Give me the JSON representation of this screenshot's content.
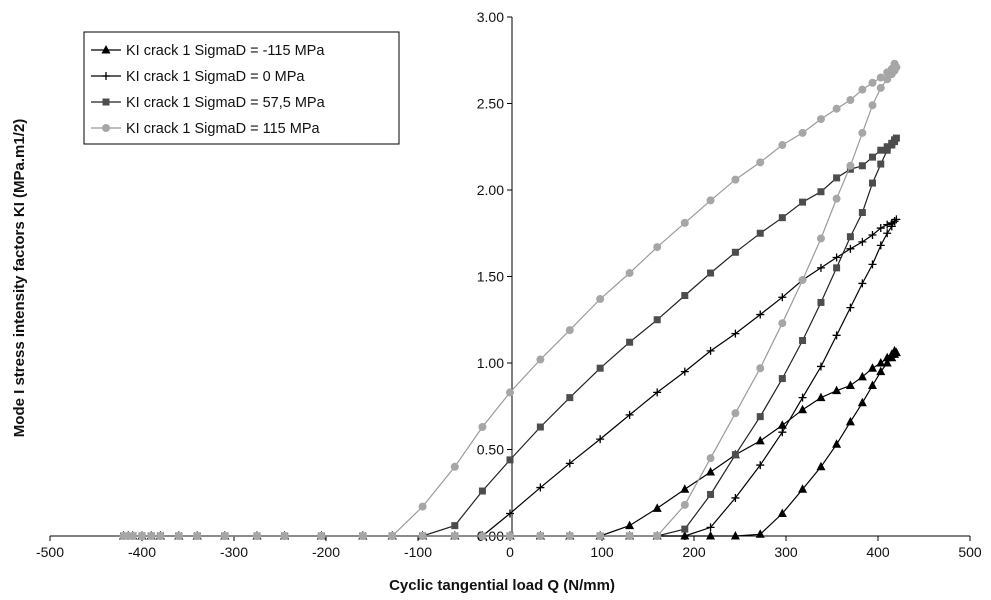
{
  "chart_data": {
    "type": "line",
    "xlabel": "Cyclic tangential load Q (N/mm)",
    "ylabel": "Mode I stress intensity factors KI (MPa.m1/2)",
    "xlim": [
      -500,
      500
    ],
    "ylim": [
      0,
      3
    ],
    "x_ticks": [
      "-500",
      "-400",
      "-300",
      "-200",
      "-100",
      "0",
      "100",
      "200",
      "300",
      "400",
      "500"
    ],
    "y_ticks": [
      "0.00",
      "0.50",
      "1.00",
      "1.50",
      "2.00",
      "2.50",
      "3.00"
    ],
    "grid": false,
    "legend_position": "top-left",
    "series": [
      {
        "name": "KI crack 1 SigmaD = -115 MPa",
        "marker": "triangle",
        "color": "#000000",
        "line_color": "#000000",
        "points": [
          [
            -420,
            0
          ],
          [
            -415,
            0
          ],
          [
            -410,
            0
          ],
          [
            -400,
            0
          ],
          [
            -390,
            0
          ],
          [
            -380,
            0
          ],
          [
            -360,
            0
          ],
          [
            -340,
            0
          ],
          [
            -310,
            0
          ],
          [
            -275,
            0
          ],
          [
            -245,
            0
          ],
          [
            -205,
            0
          ],
          [
            -160,
            0
          ],
          [
            -128,
            0
          ],
          [
            -95,
            0
          ],
          [
            -60,
            0
          ],
          [
            -30,
            0
          ],
          [
            0,
            0
          ],
          [
            33,
            0
          ],
          [
            65,
            0
          ],
          [
            98,
            0
          ],
          [
            130,
            0
          ],
          [
            160,
            0
          ],
          [
            190,
            0
          ],
          [
            218,
            0
          ],
          [
            245,
            0
          ],
          [
            272,
            0.01
          ],
          [
            296,
            0.13
          ],
          [
            318,
            0.27
          ],
          [
            338,
            0.4
          ],
          [
            355,
            0.53
          ],
          [
            370,
            0.66
          ],
          [
            383,
            0.77
          ],
          [
            394,
            0.87
          ],
          [
            403,
            0.95
          ],
          [
            410,
            1.0
          ],
          [
            415,
            1.03
          ],
          [
            418,
            1.05
          ],
          [
            420,
            1.06
          ],
          [
            418,
            1.07
          ],
          [
            415,
            1.05
          ],
          [
            410,
            1.03
          ],
          [
            403,
            1.0
          ],
          [
            394,
            0.97
          ],
          [
            383,
            0.92
          ],
          [
            370,
            0.87
          ],
          [
            355,
            0.84
          ],
          [
            338,
            0.8
          ],
          [
            318,
            0.73
          ],
          [
            296,
            0.64
          ],
          [
            272,
            0.55
          ],
          [
            245,
            0.47
          ],
          [
            218,
            0.37
          ],
          [
            190,
            0.27
          ],
          [
            160,
            0.16
          ],
          [
            130,
            0.06
          ],
          [
            98,
            0
          ],
          [
            65,
            0
          ],
          [
            33,
            0
          ],
          [
            0,
            0
          ],
          [
            -30,
            0
          ],
          [
            -60,
            0
          ],
          [
            -95,
            0
          ],
          [
            -128,
            0
          ],
          [
            -160,
            0
          ],
          [
            -205,
            0
          ],
          [
            -245,
            0
          ],
          [
            -275,
            0
          ],
          [
            -310,
            0
          ],
          [
            -340,
            0
          ],
          [
            -360,
            0
          ],
          [
            -380,
            0
          ],
          [
            -390,
            0
          ],
          [
            -400,
            0
          ],
          [
            -410,
            0
          ],
          [
            -415,
            0
          ],
          [
            -420,
            0
          ]
        ]
      },
      {
        "name": "KI crack 1 SigmaD = 0 MPa",
        "marker": "plus",
        "color": "#000000",
        "line_color": "#000000",
        "points": [
          [
            -420,
            0
          ],
          [
            -415,
            0
          ],
          [
            -410,
            0
          ],
          [
            -400,
            0
          ],
          [
            -390,
            0
          ],
          [
            -380,
            0
          ],
          [
            -360,
            0
          ],
          [
            -340,
            0
          ],
          [
            -310,
            0
          ],
          [
            -275,
            0
          ],
          [
            -245,
            0
          ],
          [
            -205,
            0
          ],
          [
            -160,
            0
          ],
          [
            -128,
            0
          ],
          [
            -95,
            0
          ],
          [
            -60,
            0
          ],
          [
            -30,
            0
          ],
          [
            0,
            0
          ],
          [
            33,
            0
          ],
          [
            65,
            0
          ],
          [
            98,
            0
          ],
          [
            130,
            0
          ],
          [
            160,
            0
          ],
          [
            190,
            0
          ],
          [
            218,
            0.05
          ],
          [
            245,
            0.22
          ],
          [
            272,
            0.41
          ],
          [
            296,
            0.6
          ],
          [
            318,
            0.8
          ],
          [
            338,
            0.98
          ],
          [
            355,
            1.16
          ],
          [
            370,
            1.32
          ],
          [
            383,
            1.46
          ],
          [
            394,
            1.57
          ],
          [
            403,
            1.68
          ],
          [
            410,
            1.75
          ],
          [
            415,
            1.79
          ],
          [
            418,
            1.82
          ],
          [
            420,
            1.83
          ],
          [
            418,
            1.82
          ],
          [
            415,
            1.81
          ],
          [
            410,
            1.8
          ],
          [
            403,
            1.78
          ],
          [
            394,
            1.74
          ],
          [
            383,
            1.7
          ],
          [
            370,
            1.66
          ],
          [
            355,
            1.61
          ],
          [
            338,
            1.55
          ],
          [
            318,
            1.48
          ],
          [
            296,
            1.38
          ],
          [
            272,
            1.28
          ],
          [
            245,
            1.17
          ],
          [
            218,
            1.07
          ],
          [
            190,
            0.95
          ],
          [
            160,
            0.83
          ],
          [
            130,
            0.7
          ],
          [
            98,
            0.56
          ],
          [
            65,
            0.42
          ],
          [
            33,
            0.28
          ],
          [
            0,
            0.13
          ],
          [
            -30,
            0
          ],
          [
            -60,
            0
          ],
          [
            -95,
            0
          ],
          [
            -128,
            0
          ],
          [
            -160,
            0
          ],
          [
            -205,
            0
          ],
          [
            -245,
            0
          ],
          [
            -275,
            0
          ],
          [
            -310,
            0
          ],
          [
            -340,
            0
          ],
          [
            -360,
            0
          ],
          [
            -380,
            0
          ],
          [
            -390,
            0
          ],
          [
            -400,
            0
          ],
          [
            -410,
            0
          ],
          [
            -415,
            0
          ],
          [
            -420,
            0
          ]
        ]
      },
      {
        "name": "KI crack 1 SigmaD = 57,5 MPa",
        "marker": "square",
        "color": "#4d4d4d",
        "line_color": "#222222",
        "points": [
          [
            -420,
            0
          ],
          [
            -415,
            0
          ],
          [
            -410,
            0
          ],
          [
            -400,
            0
          ],
          [
            -390,
            0
          ],
          [
            -380,
            0
          ],
          [
            -360,
            0
          ],
          [
            -340,
            0
          ],
          [
            -310,
            0
          ],
          [
            -275,
            0
          ],
          [
            -245,
            0
          ],
          [
            -205,
            0
          ],
          [
            -160,
            0
          ],
          [
            -128,
            0
          ],
          [
            -95,
            0
          ],
          [
            -60,
            0
          ],
          [
            -30,
            0
          ],
          [
            0,
            0
          ],
          [
            33,
            0
          ],
          [
            65,
            0
          ],
          [
            98,
            0
          ],
          [
            130,
            0
          ],
          [
            160,
            0
          ],
          [
            190,
            0.04
          ],
          [
            218,
            0.24
          ],
          [
            245,
            0.47
          ],
          [
            272,
            0.69
          ],
          [
            296,
            0.91
          ],
          [
            318,
            1.13
          ],
          [
            338,
            1.35
          ],
          [
            355,
            1.55
          ],
          [
            370,
            1.73
          ],
          [
            383,
            1.87
          ],
          [
            394,
            2.04
          ],
          [
            403,
            2.15
          ],
          [
            410,
            2.23
          ],
          [
            415,
            2.26
          ],
          [
            418,
            2.28
          ],
          [
            420,
            2.3
          ],
          [
            418,
            2.29
          ],
          [
            415,
            2.27
          ],
          [
            410,
            2.25
          ],
          [
            403,
            2.23
          ],
          [
            394,
            2.19
          ],
          [
            383,
            2.14
          ],
          [
            370,
            2.12
          ],
          [
            355,
            2.07
          ],
          [
            338,
            1.99
          ],
          [
            318,
            1.93
          ],
          [
            296,
            1.84
          ],
          [
            272,
            1.75
          ],
          [
            245,
            1.64
          ],
          [
            218,
            1.52
          ],
          [
            190,
            1.39
          ],
          [
            160,
            1.25
          ],
          [
            130,
            1.12
          ],
          [
            98,
            0.97
          ],
          [
            65,
            0.8
          ],
          [
            33,
            0.63
          ],
          [
            0,
            0.44
          ],
          [
            -30,
            0.26
          ],
          [
            -60,
            0.06
          ],
          [
            -95,
            0
          ],
          [
            -128,
            0
          ],
          [
            -160,
            0
          ],
          [
            -205,
            0
          ],
          [
            -245,
            0
          ],
          [
            -275,
            0
          ],
          [
            -310,
            0
          ],
          [
            -340,
            0
          ],
          [
            -360,
            0
          ],
          [
            -380,
            0
          ],
          [
            -390,
            0
          ],
          [
            -400,
            0
          ],
          [
            -410,
            0
          ],
          [
            -415,
            0
          ],
          [
            -420,
            0
          ]
        ]
      },
      {
        "name": "KI crack 1 SigmaD = 115 MPa",
        "marker": "circle",
        "color": "#a6a6a6",
        "line_color": "#9a9a9a",
        "points": [
          [
            -420,
            0
          ],
          [
            -415,
            0
          ],
          [
            -410,
            0
          ],
          [
            -400,
            0
          ],
          [
            -390,
            0
          ],
          [
            -380,
            0
          ],
          [
            -360,
            0
          ],
          [
            -340,
            0
          ],
          [
            -310,
            0
          ],
          [
            -275,
            0
          ],
          [
            -245,
            0
          ],
          [
            -205,
            0
          ],
          [
            -160,
            0
          ],
          [
            -128,
            0
          ],
          [
            -95,
            0
          ],
          [
            -60,
            0
          ],
          [
            -30,
            0
          ],
          [
            0,
            0
          ],
          [
            33,
            0
          ],
          [
            65,
            0
          ],
          [
            98,
            0
          ],
          [
            130,
            0
          ],
          [
            160,
            0
          ],
          [
            190,
            0.18
          ],
          [
            218,
            0.45
          ],
          [
            245,
            0.71
          ],
          [
            272,
            0.97
          ],
          [
            296,
            1.23
          ],
          [
            318,
            1.48
          ],
          [
            338,
            1.72
          ],
          [
            355,
            1.95
          ],
          [
            370,
            2.14
          ],
          [
            383,
            2.33
          ],
          [
            394,
            2.49
          ],
          [
            403,
            2.59
          ],
          [
            410,
            2.64
          ],
          [
            415,
            2.67
          ],
          [
            418,
            2.69
          ],
          [
            420,
            2.71
          ],
          [
            418,
            2.73
          ],
          [
            415,
            2.7
          ],
          [
            410,
            2.68
          ],
          [
            403,
            2.65
          ],
          [
            394,
            2.62
          ],
          [
            383,
            2.58
          ],
          [
            370,
            2.52
          ],
          [
            355,
            2.47
          ],
          [
            338,
            2.41
          ],
          [
            318,
            2.33
          ],
          [
            296,
            2.26
          ],
          [
            272,
            2.16
          ],
          [
            245,
            2.06
          ],
          [
            218,
            1.94
          ],
          [
            190,
            1.81
          ],
          [
            160,
            1.67
          ],
          [
            130,
            1.52
          ],
          [
            98,
            1.37
          ],
          [
            65,
            1.19
          ],
          [
            33,
            1.02
          ],
          [
            0,
            0.83
          ],
          [
            -30,
            0.63
          ],
          [
            -60,
            0.4
          ],
          [
            -95,
            0.17
          ],
          [
            -128,
            0
          ],
          [
            -160,
            0
          ],
          [
            -205,
            0
          ],
          [
            -245,
            0
          ],
          [
            -275,
            0
          ],
          [
            -310,
            0
          ],
          [
            -340,
            0
          ],
          [
            -360,
            0
          ],
          [
            -380,
            0
          ],
          [
            -390,
            0
          ],
          [
            -400,
            0
          ],
          [
            -410,
            0
          ],
          [
            -415,
            0
          ],
          [
            -420,
            0
          ]
        ]
      }
    ]
  }
}
